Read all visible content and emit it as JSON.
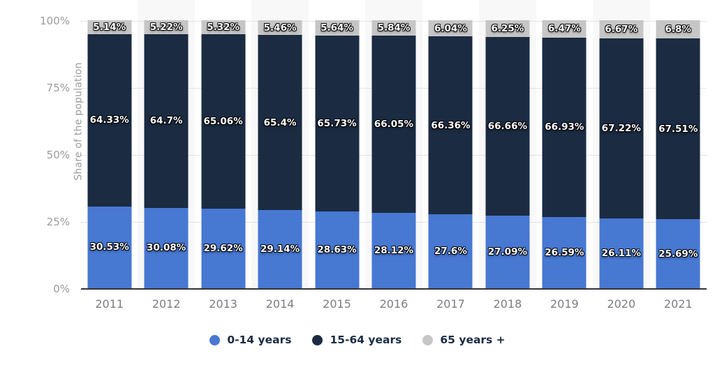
{
  "chart_data": {
    "type": "bar",
    "variant": "stacked-vertical",
    "stacked": true,
    "title": "",
    "xlabel": "",
    "ylabel": "Share of the population",
    "ylim": [
      0,
      100
    ],
    "grid": "horizontal-dotted",
    "legend_position": "bottom",
    "categories": [
      "2011",
      "2012",
      "2013",
      "2014",
      "2015",
      "2016",
      "2017",
      "2018",
      "2019",
      "2020",
      "2021"
    ],
    "yticks": [
      {
        "label": "0%",
        "value": 0
      },
      {
        "label": "25%",
        "value": 25
      },
      {
        "label": "50%",
        "value": 50
      },
      {
        "label": "75%",
        "value": 75
      },
      {
        "label": "100%",
        "value": 100
      }
    ],
    "series": [
      {
        "name": "0-14 years",
        "color": "#4778d2",
        "values": [
          30.53,
          30.08,
          29.62,
          29.14,
          28.63,
          28.12,
          27.6,
          27.09,
          26.59,
          26.11,
          25.69
        ],
        "labels": [
          "30.53%",
          "30.08%",
          "29.62%",
          "29.14%",
          "28.63%",
          "28.12%",
          "27.6%",
          "27.09%",
          "26.59%",
          "26.11%",
          "25.69%"
        ]
      },
      {
        "name": "15-64 years",
        "color": "#1a2b42",
        "values": [
          64.33,
          64.7,
          65.06,
          65.4,
          65.73,
          66.05,
          66.36,
          66.66,
          66.93,
          67.22,
          67.51
        ],
        "labels": [
          "64.33%",
          "64.7%",
          "65.06%",
          "65.4%",
          "65.73%",
          "66.05%",
          "66.36%",
          "66.66%",
          "66.93%",
          "67.22%",
          "67.51%"
        ]
      },
      {
        "name": "65 years +",
        "color": "#c6c6c6",
        "values": [
          5.14,
          5.22,
          5.32,
          5.46,
          5.64,
          5.84,
          6.04,
          6.25,
          6.47,
          6.67,
          6.8
        ],
        "labels": [
          "5.14%",
          "5.22%",
          "5.32%",
          "5.46%",
          "5.64%",
          "5.84%",
          "6.04%",
          "6.25%",
          "6.47%",
          "6.67%",
          "6.8%"
        ]
      }
    ],
    "value_label_style": {
      "text_color": "#ffffff",
      "outline_color": "#000000"
    },
    "styles": {
      "band_color": "#f8f8f9",
      "gridline_color": "#c9c9c9",
      "axis_line_color": "#333333",
      "tick_label_color": "#9b9b9b",
      "x_label_color": "#7d7d7d",
      "legend_text_color": "#1a2b42"
    }
  }
}
